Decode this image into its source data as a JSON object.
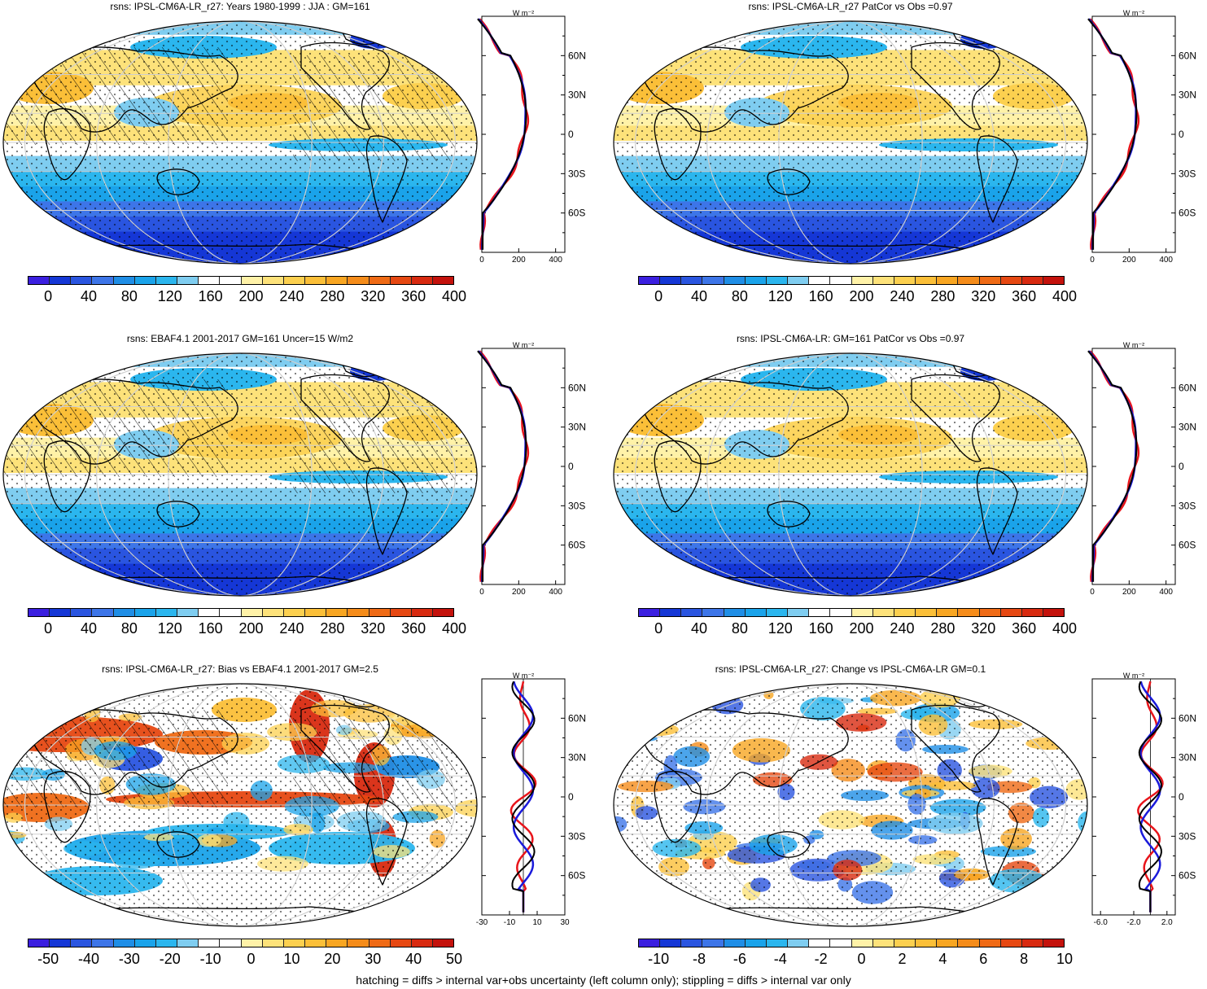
{
  "footnote": "hatching = diffs > internal var+obs uncertainty (left column only); stippling = diffs > internal var only",
  "colors": {
    "mean_scale": [
      "#3b1fe0",
      "#1537d6",
      "#2a55e0",
      "#3d75e8",
      "#1f8ee6",
      "#1aa3ea",
      "#2bb6ee",
      "#7fcdf0",
      "#ffffff",
      "#ffffff",
      "#fff2a8",
      "#fde27a",
      "#fcd04f",
      "#fbbf38",
      "#f8a622",
      "#f58c1a",
      "#ef6a15",
      "#e64812",
      "#d82a10",
      "#c4120c"
    ],
    "diff_scale": [
      "#3b1fe0",
      "#1537d6",
      "#2a55e0",
      "#3d75e8",
      "#1f8ee6",
      "#1aa3ea",
      "#2bb6ee",
      "#7fcdf0",
      "#ffffff",
      "#ffffff",
      "#fff2a8",
      "#fde27a",
      "#fcd04f",
      "#fbbf38",
      "#f8a622",
      "#f58c1a",
      "#ef6a15",
      "#e64812",
      "#d82a10",
      "#c4120c"
    ],
    "zonal_red": "#e8141a",
    "zonal_blue": "#1a1adb",
    "zonal_black": "#000000"
  },
  "panels": [
    {
      "title": "rsns: IPSL-CM6A-LR_r27: Years 1980-1999 : JJA : GM=161",
      "kind": "mean",
      "hatched": true,
      "colorbar_ticks": [
        "0",
        "40",
        "80",
        "120",
        "160",
        "200",
        "240",
        "280",
        "320",
        "360",
        "400"
      ],
      "zonal": {
        "unit": "W m⁻²",
        "lat_labels": [
          "60N",
          "30N",
          "0",
          "30S",
          "60S"
        ],
        "x_ticks": [
          "0",
          "200",
          "400"
        ],
        "xlim": [
          0,
          450
        ]
      }
    },
    {
      "title": "rsns: IPSL-CM6A-LR_r27 PatCor vs Obs =0.97",
      "kind": "mean",
      "hatched": false,
      "colorbar_ticks": [
        "0",
        "40",
        "80",
        "120",
        "160",
        "200",
        "240",
        "280",
        "320",
        "360",
        "400"
      ],
      "zonal": {
        "unit": "W m⁻²",
        "lat_labels": [
          "60N",
          "30N",
          "0",
          "30S",
          "60S"
        ],
        "x_ticks": [
          "0",
          "200",
          "400"
        ],
        "xlim": [
          0,
          450
        ]
      }
    },
    {
      "title": "rsns: EBAF4.1 2001-2017 GM=161 Uncer=15 W/m2",
      "kind": "mean",
      "hatched": true,
      "colorbar_ticks": [
        "0",
        "40",
        "80",
        "120",
        "160",
        "200",
        "240",
        "280",
        "320",
        "360",
        "400"
      ],
      "zonal": {
        "unit": "W m⁻²",
        "lat_labels": [
          "60N",
          "30N",
          "0",
          "30S",
          "60S"
        ],
        "x_ticks": [
          "0",
          "200",
          "400"
        ],
        "xlim": [
          0,
          450
        ]
      }
    },
    {
      "title": "rsns: IPSL-CM6A-LR: GM=161 PatCor vs Obs =0.97",
      "kind": "mean",
      "hatched": false,
      "colorbar_ticks": [
        "0",
        "40",
        "80",
        "120",
        "160",
        "200",
        "240",
        "280",
        "320",
        "360",
        "400"
      ],
      "zonal": {
        "unit": "W m⁻²",
        "lat_labels": [
          "60N",
          "30N",
          "0",
          "30S",
          "60S"
        ],
        "x_ticks": [
          "0",
          "200",
          "400"
        ],
        "xlim": [
          0,
          450
        ]
      }
    },
    {
      "title": "rsns: IPSL-CM6A-LR_r27: Bias vs EBAF4.1 2001-2017 GM=2.5",
      "kind": "bias",
      "hatched": true,
      "colorbar_ticks": [
        "-50",
        "-40",
        "-30",
        "-20",
        "-10",
        "0",
        "10",
        "20",
        "30",
        "40",
        "50"
      ],
      "zonal": {
        "unit": "W m⁻²",
        "lat_labels": [
          "60N",
          "30N",
          "0",
          "30S",
          "60S"
        ],
        "x_ticks": [
          "-30",
          "-10",
          "10",
          "30"
        ],
        "xlim": [
          -30,
          30
        ]
      }
    },
    {
      "title": "rsns: IPSL-CM6A-LR_r27: Change vs IPSL-CM6A-LR GM=0.1",
      "kind": "change",
      "hatched": false,
      "colorbar_ticks": [
        "-10",
        "-8",
        "-6",
        "-4",
        "-2",
        "0",
        "2",
        "4",
        "6",
        "8",
        "10"
      ],
      "zonal": {
        "unit": "W m⁻²",
        "lat_labels": [
          "60N",
          "30N",
          "0",
          "30S",
          "60S"
        ],
        "x_ticks": [
          "-6.0",
          "-2.0",
          "2.0"
        ],
        "xlim": [
          -7,
          3
        ]
      }
    }
  ]
}
